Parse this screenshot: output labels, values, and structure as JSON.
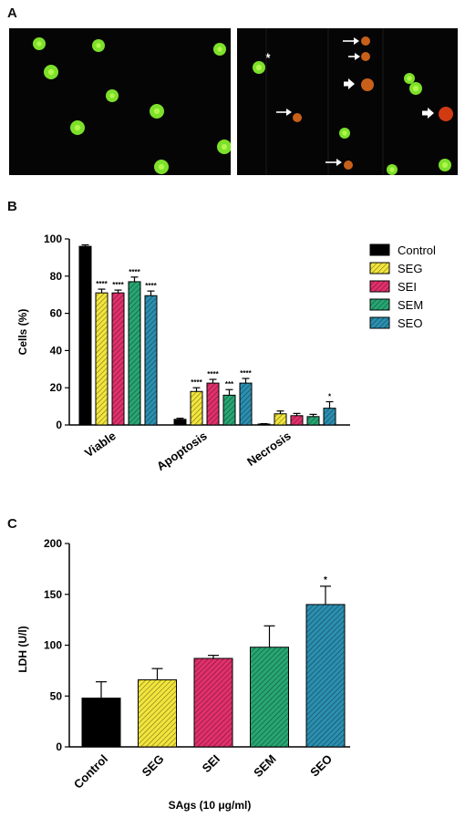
{
  "panels": {
    "a": "A",
    "b": "B",
    "c": "C"
  },
  "micrograph": {
    "asterisk": "*",
    "cell_colors": {
      "live": "#7de02a",
      "live_core": "#c8ff5a",
      "apoptotic": "#c8601a",
      "necrotic": "#d23a12"
    },
    "arrow_color": "#ffffff"
  },
  "colors": {
    "Control": "#000000",
    "SEG": "#f2e53c",
    "SEI": "#e2306c",
    "SEM": "#27a673",
    "SEO": "#2b8fb0"
  },
  "chart_data": [
    {
      "type": "bar",
      "categories": [
        "Viable",
        "Apoptosis",
        "Necrosis"
      ],
      "ylabel": "Cells (%)",
      "xlabel": "",
      "ylim": [
        0,
        100
      ],
      "yticks": [
        0,
        20,
        40,
        60,
        80,
        100
      ],
      "legend_position": "right",
      "series": [
        {
          "name": "Control",
          "values": [
            96,
            3,
            0.5
          ],
          "errors": [
            0.8,
            0.6,
            0.2
          ],
          "sig": [
            "",
            "",
            ""
          ]
        },
        {
          "name": "SEG",
          "values": [
            71,
            18,
            6
          ],
          "errors": [
            2,
            2,
            1.5
          ],
          "sig": [
            "****",
            "****",
            ""
          ]
        },
        {
          "name": "SEI",
          "values": [
            71,
            22.5,
            5
          ],
          "errors": [
            1.5,
            2,
            1.2
          ],
          "sig": [
            "****",
            "****",
            ""
          ]
        },
        {
          "name": "SEM",
          "values": [
            77,
            16,
            4.5
          ],
          "errors": [
            2.5,
            3,
            1.2
          ],
          "sig": [
            "****",
            "***",
            ""
          ]
        },
        {
          "name": "SEO",
          "values": [
            69.5,
            22.5,
            9
          ],
          "errors": [
            2.5,
            2.5,
            3.5
          ],
          "sig": [
            "****",
            "****",
            "*"
          ]
        }
      ]
    },
    {
      "type": "bar",
      "categories": [
        "Control",
        "SEG",
        "SEI",
        "SEM",
        "SEO"
      ],
      "values": [
        48,
        66,
        87,
        98,
        140
      ],
      "errors": [
        16,
        11,
        3,
        21,
        18
      ],
      "sig": [
        "",
        "",
        "",
        "",
        "*"
      ],
      "xlabel": "SAgs (10 μg/ml)",
      "ylabel": "LDH (U/l)",
      "ylim": [
        0,
        200
      ],
      "yticks": [
        0,
        50,
        100,
        150,
        200
      ]
    }
  ]
}
